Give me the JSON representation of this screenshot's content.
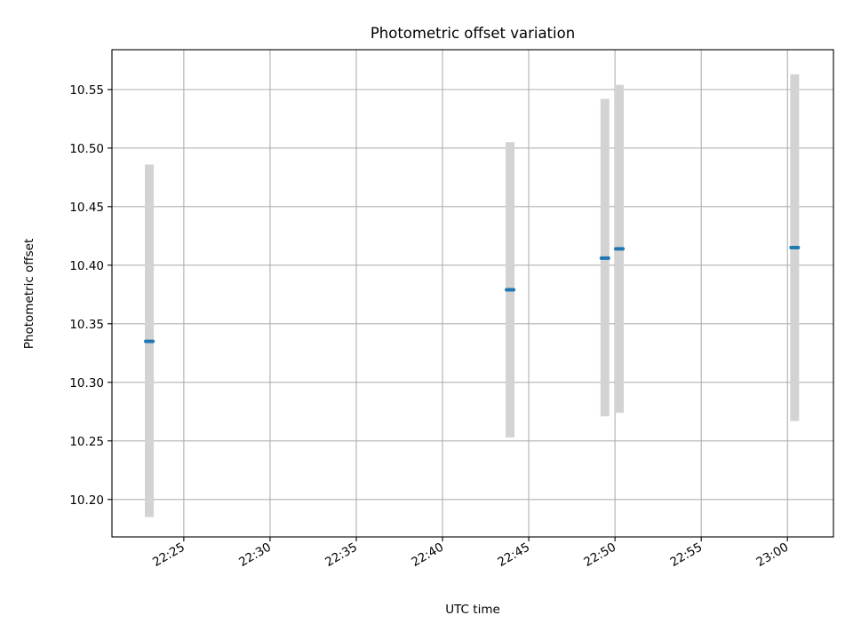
{
  "chart_data": {
    "type": "scatter",
    "title": "Photometric offset variation",
    "xlabel": "UTC time",
    "ylabel": "Photometric offset",
    "xlim": [
      "22:20:50",
      "23:02:40"
    ],
    "ylim": [
      10.168,
      10.584
    ],
    "grid": true,
    "x_ticks": [
      "22:25",
      "22:30",
      "22:35",
      "22:40",
      "22:45",
      "22:50",
      "22:55",
      "23:00"
    ],
    "y_ticks": [
      "10.20",
      "10.25",
      "10.30",
      "10.35",
      "10.40",
      "10.45",
      "10.50",
      "10.55"
    ],
    "series": [
      {
        "points": [
          {
            "x": "22:23:00",
            "y": 10.335,
            "ylow": 10.185,
            "yhigh": 10.486
          },
          {
            "x": "22:43:55",
            "y": 10.379,
            "ylow": 10.253,
            "yhigh": 10.505
          },
          {
            "x": "22:49:25",
            "y": 10.406,
            "ylow": 10.271,
            "yhigh": 10.542
          },
          {
            "x": "22:50:15",
            "y": 10.414,
            "ylow": 10.274,
            "yhigh": 10.554
          },
          {
            "x": "23:00:25",
            "y": 10.415,
            "ylow": 10.267,
            "yhigh": 10.563
          }
        ]
      }
    ],
    "colors": {
      "marker": "#1f77b4",
      "errorbar": "#d3d3d3",
      "grid": "#b0b0b0"
    }
  }
}
